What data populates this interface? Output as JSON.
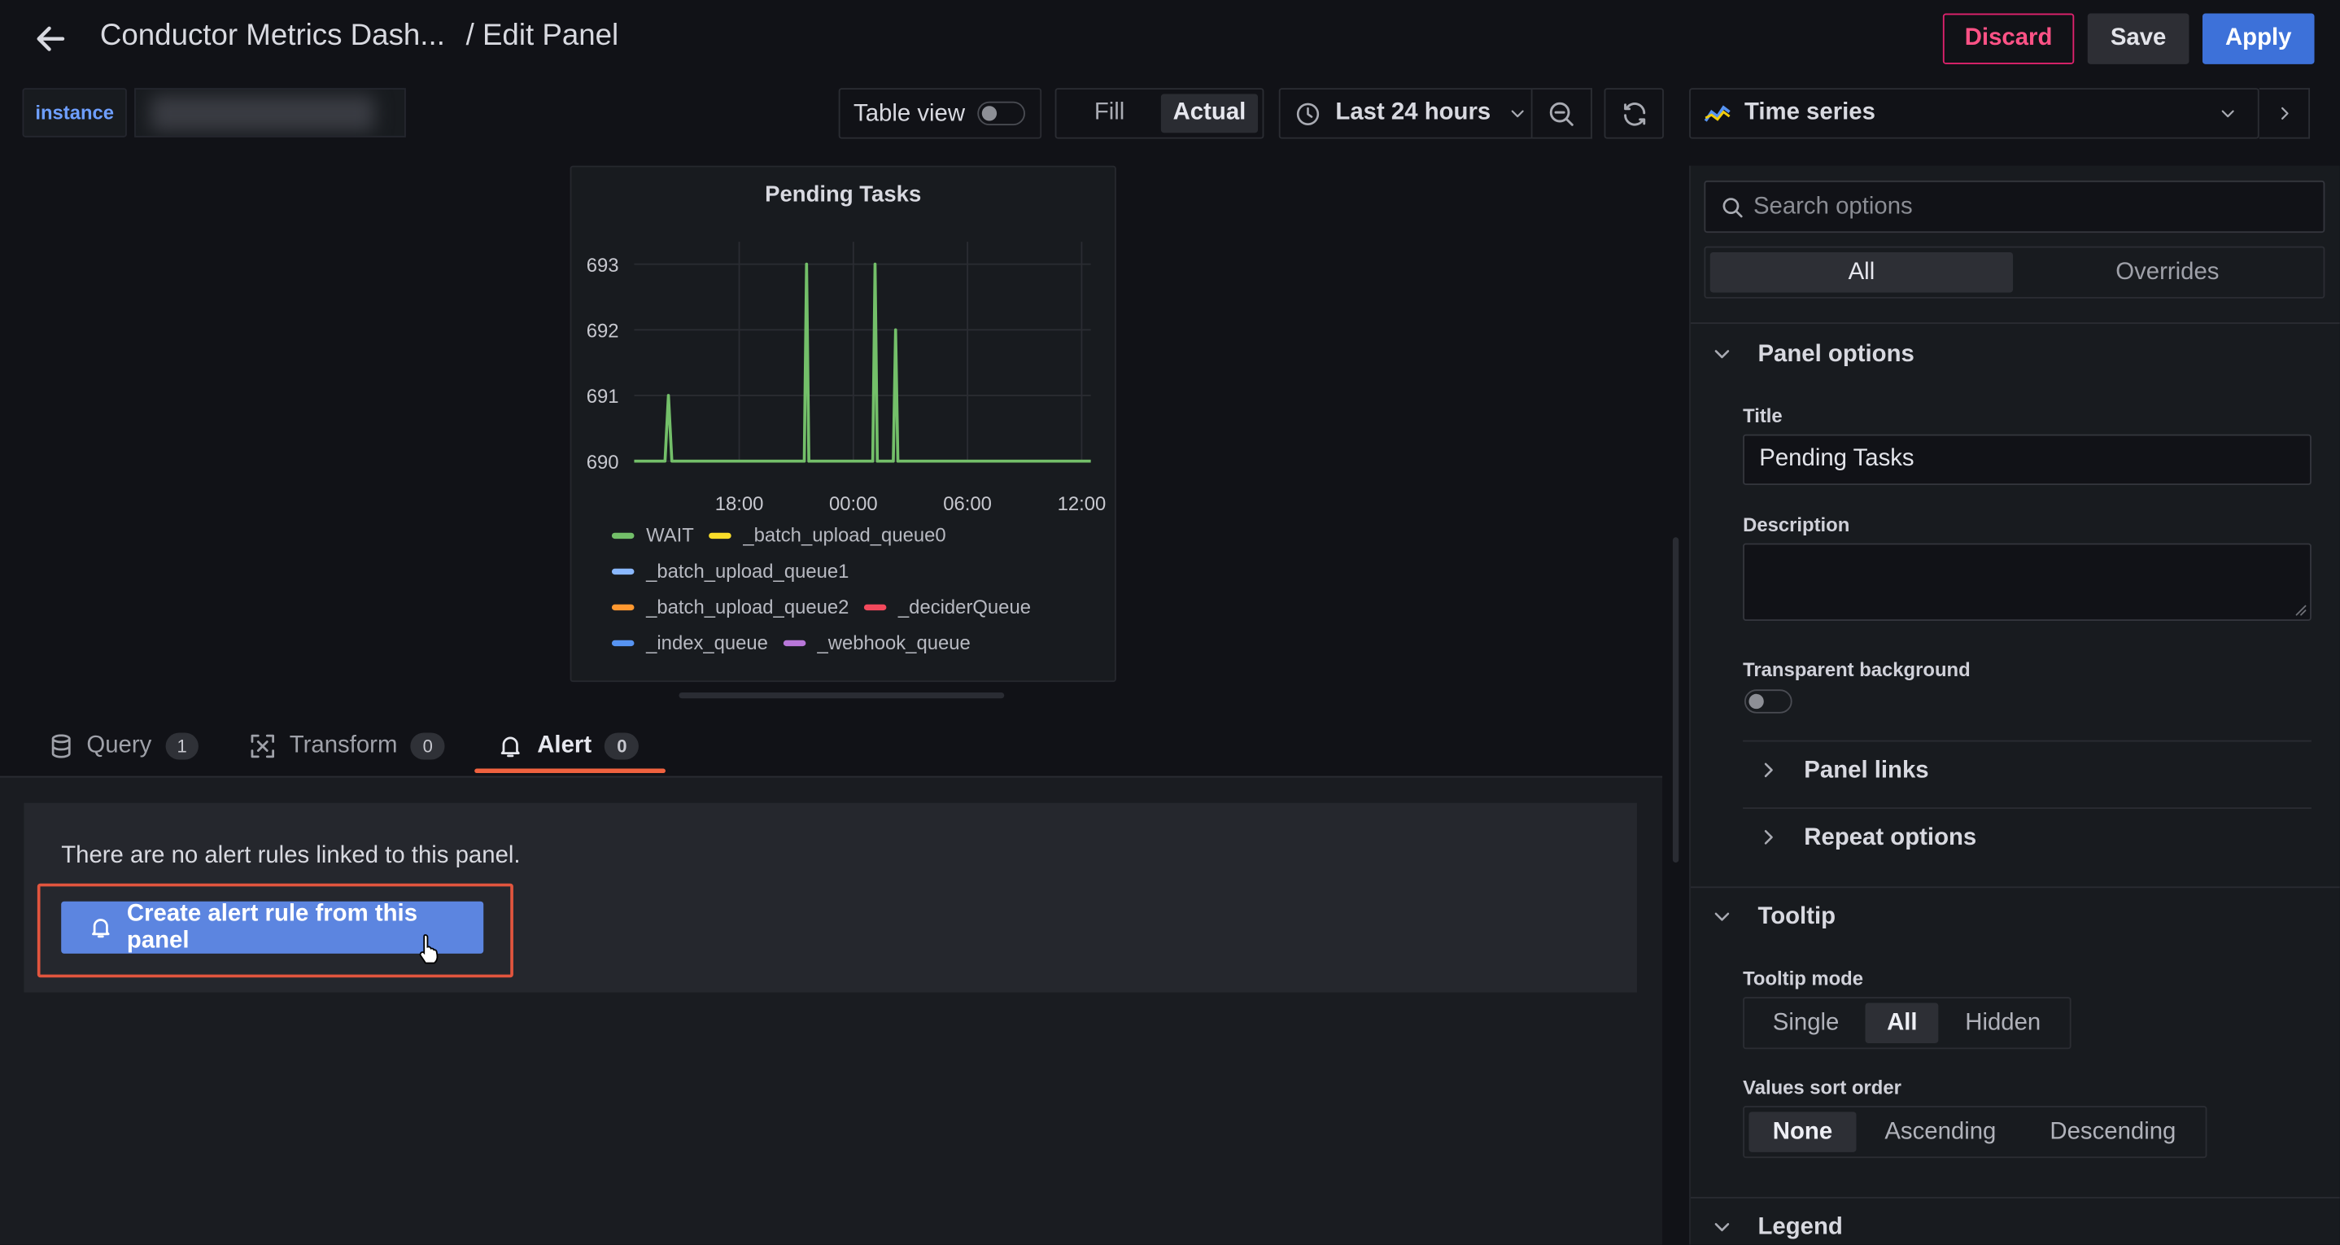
{
  "header": {
    "dashboard_title": "Conductor Metrics Dash...",
    "page_title": "/ Edit Panel",
    "discard_label": "Discard",
    "save_label": "Save",
    "apply_label": "Apply"
  },
  "variables": {
    "instance_label": "instance"
  },
  "toolbar": {
    "table_view_label": "Table view",
    "table_view_on": false,
    "fill_label": "Fill",
    "actual_label": "Actual",
    "time_range": "Last 24 hours",
    "visualization": "Time series"
  },
  "panel": {
    "title": "Pending Tasks",
    "legend": [
      {
        "name": "WAIT",
        "color": "#73bf69"
      },
      {
        "name": "_batch_upload_queue0",
        "color": "#fade2a"
      },
      {
        "name": "_batch_upload_queue1",
        "color": "#8ab8ff"
      },
      {
        "name": "_batch_upload_queue2",
        "color": "#ff9830"
      },
      {
        "name": "_deciderQueue",
        "color": "#f2495c"
      },
      {
        "name": "_index_queue",
        "color": "#5794f2"
      },
      {
        "name": "_webhook_queue",
        "color": "#b877d9"
      }
    ]
  },
  "chart_data": {
    "type": "line",
    "title": "Pending Tasks",
    "y_ticks": [
      "693",
      "692",
      "691",
      "690"
    ],
    "x_ticks": [
      "18:00",
      "00:00",
      "06:00",
      "12:00"
    ],
    "ylim": [
      690,
      693
    ],
    "grid": true,
    "legend_placement": "bottom",
    "series": [
      {
        "name": "WAIT",
        "color": "#73bf69",
        "x": [
          0.0,
          1.0,
          1.35,
          1.5,
          1.65,
          2.0,
          7.3,
          7.45,
          7.55,
          7.65,
          7.8,
          10.3,
          10.45,
          10.55,
          10.65,
          10.8,
          11.2,
          11.35,
          11.45,
          11.55,
          11.7,
          20.0
        ],
        "values": [
          690,
          690,
          690,
          691,
          690,
          690,
          690,
          690,
          693,
          690,
          690,
          690,
          690,
          693,
          690,
          690,
          690,
          690,
          692,
          690,
          690,
          690
        ]
      }
    ]
  },
  "tabs": [
    {
      "label": "Query",
      "count": "1"
    },
    {
      "label": "Transform",
      "count": "0"
    },
    {
      "label": "Alert",
      "count": "0",
      "active": true
    }
  ],
  "alert": {
    "empty_text": "There are no alert rules linked to this panel.",
    "create_label": "Create alert rule from this panel"
  },
  "options": {
    "search_placeholder": "Search options",
    "tab_all": "All",
    "tab_overrides": "Overrides",
    "panel_options": {
      "header": "Panel options",
      "title_label": "Title",
      "title_value": "Pending Tasks",
      "description_label": "Description",
      "description_value": "",
      "transparent_label": "Transparent background",
      "transparent_on": false,
      "panel_links": "Panel links",
      "repeat_options": "Repeat options"
    },
    "tooltip": {
      "header": "Tooltip",
      "mode_label": "Tooltip mode",
      "modes": [
        "Single",
        "All",
        "Hidden"
      ],
      "mode_selected": "All",
      "sort_label": "Values sort order",
      "sorts": [
        "None",
        "Ascending",
        "Descending"
      ],
      "sort_selected": "None"
    },
    "legend_header": "Legend"
  }
}
